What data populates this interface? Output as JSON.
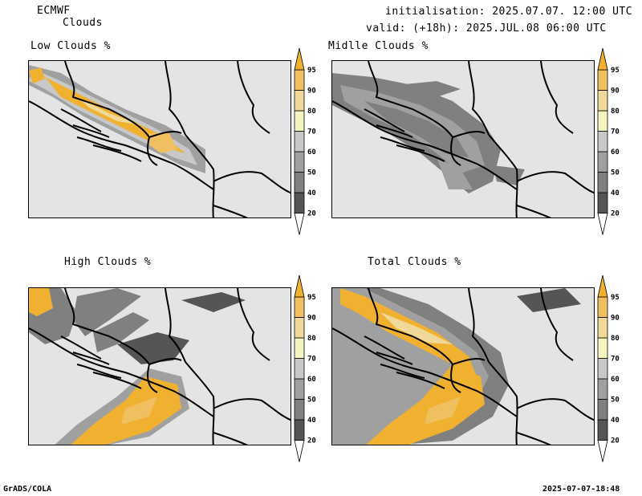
{
  "header": {
    "model": "ECMWF",
    "product": "Clouds",
    "init_line": "initialisation: 2025.07.07. 12:00 UTC",
    "valid_line": "valid: (+18h): 2025.JUL.08 06:00 UTC"
  },
  "panels": [
    {
      "title": "Low Clouds %"
    },
    {
      "title": "Midlle Clouds %"
    },
    {
      "title": "High Clouds %"
    },
    {
      "title": "Total Clouds %"
    }
  ],
  "colorbar": {
    "levels": [
      "20",
      "40",
      "50",
      "60",
      "70",
      "80",
      "90",
      "95"
    ],
    "colors": [
      "#ffffff",
      "#555555",
      "#808080",
      "#a0a0a0",
      "#c8c8c8",
      "#f4f4c0",
      "#f0d898",
      "#f0c060",
      "#f0b030"
    ]
  },
  "footer": {
    "left": "GrADS/COLA",
    "right": "2025-07-07-18:48"
  }
}
